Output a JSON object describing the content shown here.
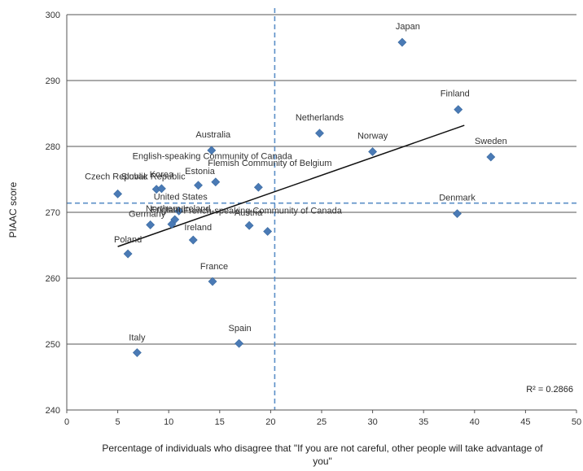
{
  "chart_data": {
    "type": "scatter",
    "title": "",
    "xlabel_lines": [
      "Percentage of individuals who disagree that \"If you are not careful, other people will take advantage of",
      "you\""
    ],
    "ylabel": "PIAAC score",
    "xlim": [
      0,
      50
    ],
    "ylim": [
      240,
      300
    ],
    "x_ticks": [
      "0",
      "5",
      "10",
      "15",
      "20",
      "25",
      "30",
      "35",
      "40",
      "45",
      "50"
    ],
    "y_ticks": [
      "240",
      "250",
      "260",
      "270",
      "280",
      "290",
      "300"
    ],
    "grid": "horizontal",
    "reference_lines": {
      "vertical_x": 20.4,
      "horizontal_y": 271.4,
      "style": "dashed"
    },
    "trendline": {
      "x": [
        5,
        39
      ],
      "y": [
        264.8,
        283.2
      ]
    },
    "r_squared_label": "R² = 0.2866",
    "series_color": "#4a7ab5",
    "points": [
      {
        "label": "Japan",
        "x": 32.9,
        "y": 295.8
      },
      {
        "label": "Finland",
        "x": 38.4,
        "y": 285.6
      },
      {
        "label": "Netherlands",
        "x": 24.8,
        "y": 282.0
      },
      {
        "label": "Norway",
        "x": 30.0,
        "y": 279.2
      },
      {
        "label": "Sweden",
        "x": 41.6,
        "y": 278.4
      },
      {
        "label": "Australia",
        "x": 14.2,
        "y": 279.4
      },
      {
        "label": "English-speaking Community of Canada",
        "x": 14.6,
        "y": 274.6
      },
      {
        "label": "Flemish Community of Belgium",
        "x": 18.8,
        "y": 273.8
      },
      {
        "label": "Estonia",
        "x": 12.9,
        "y": 274.1
      },
      {
        "label": "Slovak Republic",
        "x": 8.8,
        "y": 273.5
      },
      {
        "label": "Korea",
        "x": 9.3,
        "y": 273.6
      },
      {
        "label": "Czech Republic",
        "x": 5.0,
        "y": 272.8
      },
      {
        "label": "Denmark",
        "x": 38.3,
        "y": 269.8
      },
      {
        "label": "United States",
        "x": 11.0,
        "y": 270.2
      },
      {
        "label": "Germany",
        "x": 8.2,
        "y": 268.1
      },
      {
        "label": "Northern Ireland",
        "x": 10.6,
        "y": 268.9
      },
      {
        "label": "England",
        "x": 10.3,
        "y": 268.2
      },
      {
        "label": "Austria",
        "x": 17.9,
        "y": 268.0
      },
      {
        "label": "French-speaking Community of Canada",
        "x": 19.7,
        "y": 267.1
      },
      {
        "label": "Ireland",
        "x": 12.4,
        "y": 265.8
      },
      {
        "label": "Poland",
        "x": 6.0,
        "y": 263.7
      },
      {
        "label": "France",
        "x": 14.3,
        "y": 259.5
      },
      {
        "label": "Spain",
        "x": 16.9,
        "y": 250.1
      },
      {
        "label": "Italy",
        "x": 6.9,
        "y": 248.7
      }
    ]
  }
}
